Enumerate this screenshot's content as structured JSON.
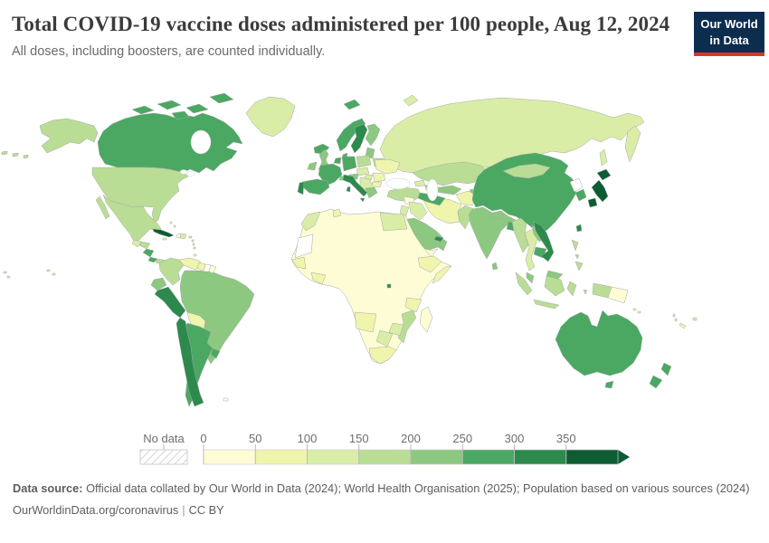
{
  "header": {
    "title": "Total COVID-19 vaccine doses administered per 100 people, Aug 12, 2024",
    "subtitle": "All doses, including boosters, are counted individually.",
    "logo_line1": "Our World",
    "logo_line2": "in Data",
    "logo_bg_color": "#0d2d4f",
    "logo_bar_color": "#d9352b"
  },
  "legend": {
    "no_data_label": "No data",
    "tick_labels": [
      "0",
      "50",
      "100",
      "150",
      "200",
      "250",
      "300",
      "350"
    ],
    "bin_ranges": [
      "0-50",
      "50-100",
      "100-150",
      "150-200",
      "200-250",
      "250-300",
      "300-350",
      "350+"
    ],
    "bin_colors": [
      "#fdfcd4",
      "#eff5ac",
      "#d9eda6",
      "#b9dd95",
      "#8cc87f",
      "#4aa862",
      "#2c8a4c",
      "#0d5c33"
    ],
    "no_data_fill": "#ffffff"
  },
  "map_regions": {
    "canada": 5,
    "canada-arctic": 5,
    "alaska": 3,
    "usa": 3,
    "greenland": 2,
    "mexico": 3,
    "cuba": 7,
    "haiti": 0,
    "dominican-republic": 2,
    "jamaica": 1,
    "puerto-rico": 2,
    "bahamas": 1,
    "lesser-antilles": 2,
    "trinidad": 1,
    "guatemala": 2,
    "honduras": 3,
    "nicaragua": 5,
    "costa-rica": 5,
    "panama": 3,
    "colombia": 3,
    "venezuela": 1,
    "guyana": 1,
    "suriname": "nd",
    "french-guiana": 0,
    "ecuador": 4,
    "peru": 6,
    "brazil": 4,
    "bolivia": 1,
    "paraguay": 2,
    "argentina": 5,
    "chile": 6,
    "uruguay": 5,
    "falkland-islands": "nd",
    "iceland": 5,
    "ireland": 4,
    "united-kingdom": 4,
    "norway": 5,
    "sweden": 6,
    "finland": 4,
    "denmark": 5,
    "baltics": 4,
    "belarus": 3,
    "poland": 3,
    "germany": 5,
    "benelux": 5,
    "france": 5,
    "switzerland": 4,
    "austria": 4,
    "czech-slovakia": 2,
    "hungary": 2,
    "ukraine": 1,
    "romania": 1,
    "balkans": 2,
    "bulgaria": 1,
    "greece": 4,
    "italy": 6,
    "spain": 5,
    "portugal": 6,
    "svalbard": 5,
    "russia": 2,
    "turkey": 3,
    "georgia": 2,
    "azerbaijan": 3,
    "syria": 0,
    "iraq": 2,
    "jordan-israel": 2,
    "iran": 1,
    "saudi-arabia": 4,
    "yemen": 0,
    "oman": 4,
    "uae": 6,
    "kazakhstan": 3,
    "uzbekistan": 4,
    "turkmenistan": 5,
    "kyrgyzstan": 2,
    "tajikistan": 4,
    "afghanistan": 1,
    "pakistan": 3,
    "india": 4,
    "nepal": 4,
    "bangladesh": 5,
    "sri-lanka": 4,
    "china": 5,
    "mongolia": 3,
    "north-korea": "nd",
    "south-korea": 5,
    "japan": 7,
    "taiwan": 6,
    "myanmar": 3,
    "thailand": 2,
    "laos": 4,
    "cambodia": 5,
    "vietnam": 6,
    "malaysia": 4,
    "indonesia": 3,
    "papua-new-guinea": 0,
    "philippines": 3,
    "australia": 5,
    "new-zealand": 5,
    "solomon-islands": 1,
    "vanuatu": 2,
    "fiji": 2,
    "new-caledonia": 1,
    "pacific-specks": 2,
    "africa-other": 0,
    "morocco": 2,
    "western-sahara-mauritania": "nd",
    "tunisia": 1,
    "egypt": 2,
    "senegal-guinea": 1,
    "ghana-cote-divoire": 1,
    "ethiopia": 1,
    "somalia": 1,
    "tanzania": 1,
    "angola": 1,
    "mozambique": 3,
    "zimbabwe": 2,
    "botswana": 2,
    "south-africa": 1,
    "rwanda": 6,
    "madagascar": 0
  },
  "footer": {
    "source_label": "Data source:",
    "source_text": " Official data collated by Our World in Data (2024); World Health Organisation (2025); Population based on various sources (2024)",
    "link": "OurWorldinData.org/coronavirus",
    "separator": "|",
    "license": "CC BY"
  }
}
